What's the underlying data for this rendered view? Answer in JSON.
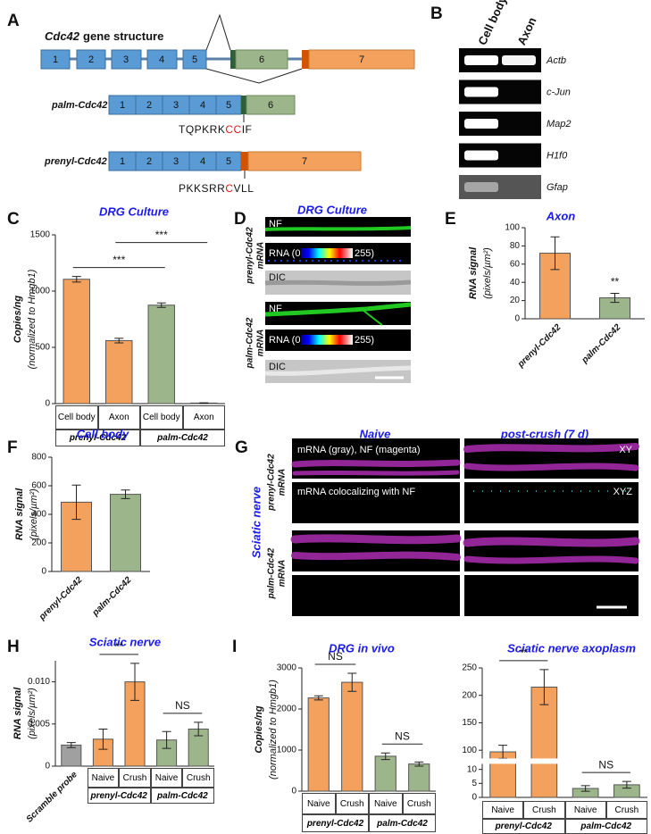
{
  "panel_labels": [
    "A",
    "B",
    "C",
    "D",
    "E",
    "F",
    "G",
    "H",
    "I"
  ],
  "gene_structure": {
    "gene": "Cdc42",
    "title": "gene structure",
    "exons": [
      "1",
      "2",
      "3",
      "4",
      "5",
      "6",
      "7"
    ],
    "isoforms": [
      {
        "name": "palm-Cdc42",
        "sequence": [
          "TQPKRK",
          "CC",
          "IF"
        ]
      },
      {
        "name": "prenyl-Cdc42",
        "sequence": [
          "PKKSRR",
          "C",
          "VLL"
        ]
      }
    ]
  },
  "gel": {
    "lanes": [
      "Cell body",
      "Axon"
    ],
    "genes": [
      "Actb",
      "c-Jun",
      "Map2",
      "H1f0",
      "Gfap"
    ]
  },
  "culture_images": {
    "title": "DRG Culture",
    "rows": [
      {
        "gene": "prenyl-Cdc42",
        "label": "mRNA"
      },
      {
        "gene": "palm-Cdc42",
        "label": "mRNA"
      }
    ],
    "channels": {
      "nf": "NF",
      "rna_low": "RNA (0",
      "rna_high": "255)",
      "dic": "DIC"
    }
  },
  "nerve_images": {
    "side_title": "Sciatic nerve",
    "columns": [
      "Naive",
      "post-crush (7 d)"
    ],
    "rows": [
      {
        "gene": "prenyl-Cdc42",
        "label": "mRNA"
      },
      {
        "gene": "palm-Cdc42",
        "label": "mRNA"
      }
    ],
    "overlays": [
      "mRNA (gray), NF (magenta)",
      "mRNA colocalizing with NF"
    ],
    "views": [
      "XY",
      "XYZ"
    ]
  },
  "chart_data": [
    {
      "type": "bar",
      "title": "DRG Culture",
      "ylabel": "Copies/ng",
      "ylabel_note": "(normalized to Hmgb1)",
      "categories": [
        "Cell body",
        "Axon",
        "Cell body",
        "Axon"
      ],
      "groups": [
        {
          "label": "prenyl-Cdc42",
          "members": [
            0,
            1
          ]
        },
        {
          "label": "palm-Cdc42",
          "members": [
            2,
            3
          ]
        }
      ],
      "values": [
        1105,
        560,
        875,
        5
      ],
      "errors": [
        25,
        20,
        20,
        2
      ],
      "colors": [
        "#f4a15d",
        "#f4a15d",
        "#9db58b",
        "#9db58b"
      ],
      "ylim": [
        0,
        1500
      ],
      "yticks": [
        0,
        500,
        1000,
        1500
      ],
      "significance": [
        {
          "label": "***",
          "bars": [
            0,
            2
          ]
        },
        {
          "label": "***",
          "bars": [
            1,
            3
          ]
        }
      ]
    },
    {
      "type": "bar",
      "title": "Axon",
      "ylabel": "RNA signal",
      "ylabel_note": "(pixels/µm²)",
      "categories": [
        "prenyl-Cdc42",
        "palm-Cdc42"
      ],
      "values": [
        72,
        23
      ],
      "errors": [
        18,
        5
      ],
      "colors": [
        "#f4a15d",
        "#9db58b"
      ],
      "ylim": [
        0,
        100
      ],
      "yticks": [
        0,
        20,
        40,
        60,
        80,
        100
      ],
      "significance": [
        {
          "label": "**",
          "bars": [
            1
          ]
        }
      ]
    },
    {
      "type": "bar",
      "title": "Cell body",
      "ylabel": "RNA signal",
      "ylabel_note": "(pixels/µm²)",
      "categories": [
        "prenyl-Cdc42",
        "palm-Cdc42"
      ],
      "values": [
        485,
        540
      ],
      "errors": [
        120,
        30
      ],
      "colors": [
        "#f4a15d",
        "#9db58b"
      ],
      "ylim": [
        0,
        800
      ],
      "yticks": [
        0,
        200,
        400,
        600,
        800
      ]
    },
    {
      "type": "bar",
      "title": "Sciatic nerve",
      "ylabel": "RNA signal",
      "ylabel_note": "(pixels/µm²)",
      "categories": [
        "Scramble probe",
        "Naive",
        "Crush",
        "Naive",
        "Crush"
      ],
      "groups": [
        {
          "label": "prenyl-Cdc42",
          "members": [
            1,
            2
          ]
        },
        {
          "label": "palm-Cdc42",
          "members": [
            3,
            4
          ]
        }
      ],
      "values": [
        0.0025,
        0.0032,
        0.01,
        0.0031,
        0.0044
      ],
      "errors": [
        0.0003,
        0.0012,
        0.0022,
        0.001,
        0.0008
      ],
      "colors": [
        "#a0a0a0",
        "#f4a15d",
        "#f4a15d",
        "#9db58b",
        "#9db58b"
      ],
      "ylim": [
        0,
        0.0125
      ],
      "yticks": [
        0,
        0.005,
        {
          "value": 0.01,
          "label": "0.010"
        }
      ],
      "significance": [
        {
          "label": "**",
          "bars": [
            1,
            2
          ]
        },
        {
          "label": "NS",
          "bars": [
            3,
            4
          ]
        }
      ]
    },
    {
      "type": "bar",
      "title": "DRG in vivo",
      "ylabel": "Copies/ng",
      "ylabel_note": "(normalized to Hmgb1)",
      "categories": [
        "Naive",
        "Crush",
        "Naive",
        "Crush"
      ],
      "groups": [
        {
          "label": "prenyl-Cdc42",
          "members": [
            0,
            1
          ]
        },
        {
          "label": "palm-Cdc42",
          "members": [
            2,
            3
          ]
        }
      ],
      "values": [
        2270,
        2650,
        850,
        660
      ],
      "errors": [
        50,
        220,
        80,
        50
      ],
      "colors": [
        "#f4a15d",
        "#f4a15d",
        "#9db58b",
        "#9db58b"
      ],
      "ylim": [
        0,
        3000
      ],
      "yticks": [
        0,
        1000,
        2000,
        3000
      ],
      "significance": [
        {
          "label": "NS",
          "bars": [
            0,
            1
          ]
        },
        {
          "label": "NS",
          "bars": [
            2,
            3
          ]
        }
      ]
    },
    {
      "type": "bar",
      "title": "Sciatic nerve axoplasm",
      "categories": [
        "Naive",
        "Crush",
        "Naive",
        "Crush"
      ],
      "groups": [
        {
          "label": "prenyl-Cdc42",
          "members": [
            0,
            1
          ]
        },
        {
          "label": "palm-Cdc42",
          "members": [
            2,
            3
          ]
        }
      ],
      "values": [
        97,
        215,
        3.2,
        4.5
      ],
      "errors": [
        12,
        32,
        1,
        1.2
      ],
      "colors": [
        "#f4a15d",
        "#f4a15d",
        "#9db58b",
        "#9db58b"
      ],
      "ylim": [
        0,
        250
      ],
      "ybreak": [
        12,
        85
      ],
      "yticks": [
        0,
        5,
        10,
        100,
        150,
        200,
        250
      ],
      "significance": [
        {
          "label": "**",
          "bars": [
            0,
            1
          ]
        },
        {
          "label": "NS",
          "bars": [
            2,
            3
          ]
        }
      ]
    }
  ]
}
